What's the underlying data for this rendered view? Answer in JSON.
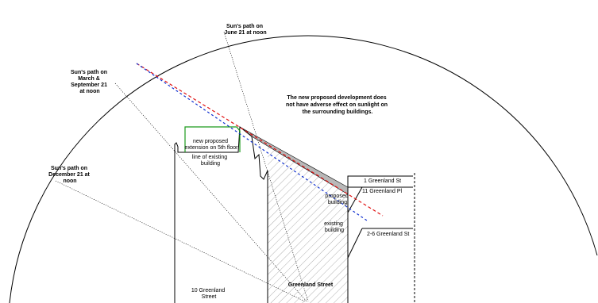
{
  "annotations": {
    "note": [
      "The new proposed development does",
      "not have adverse effect on sunlight on",
      "the surrounding buildings."
    ],
    "sun_june": [
      "Sun's path on",
      "June 21 at noon"
    ],
    "sun_march": [
      "Sun's path on",
      "March &",
      "September 21",
      "at noon"
    ],
    "sun_december": [
      "Sun's path on",
      "December 21 at",
      "noon"
    ],
    "extension": [
      "new proposed",
      "extension on 5th floor"
    ],
    "existing_line": [
      "line of existing",
      "building"
    ],
    "proposed_building": [
      "proposed",
      "building"
    ],
    "existing_building": [
      "existing",
      "building"
    ],
    "greenland_1": "1 Greenland St",
    "greenland_11": "11 Greenland Pl",
    "greenland_2_6": "2-6 Greenland St",
    "greenland_10": [
      "10 Greenland",
      "Street"
    ],
    "greenland_street": "Greenland Street"
  },
  "colors": {
    "extension_outline": "#1a9a1a",
    "proposed_line": "#e01010",
    "existing_line": "#1030d0",
    "shadow_fill": "#b8b8b8",
    "hatch": "#9a9a9a",
    "ink": "#000000"
  }
}
